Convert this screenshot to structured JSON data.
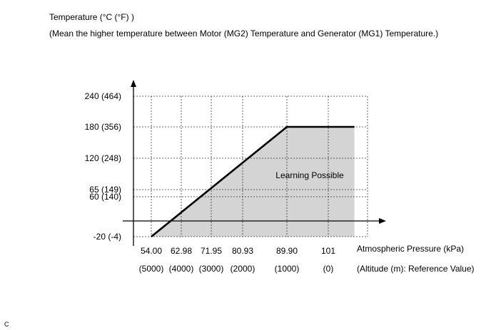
{
  "chart_data": {
    "type": "area",
    "ylabel": "Temperature (°C (°F) )",
    "ylabel_note": "(Mean the higher temperature between Motor (MG2) Temperature and Generator (MG1) Temperature.)",
    "xlabel": "Atmospheric Pressure (kPa)",
    "xlabel_secondary": "(Altitude (m): Reference Value)",
    "x_ticks": [
      {
        "value": 54.0,
        "label": "54.00",
        "altitude_label": "(5000)"
      },
      {
        "value": 62.98,
        "label": "62.98",
        "altitude_label": "(4000)"
      },
      {
        "value": 71.95,
        "label": "71.95",
        "altitude_label": "(3000)"
      },
      {
        "value": 80.93,
        "label": "80.93",
        "altitude_label": "(2000)"
      },
      {
        "value": 89.9,
        "label": "89.90",
        "altitude_label": "(1000)"
      },
      {
        "value": 101,
        "label": "101",
        "altitude_label": "(0)"
      }
    ],
    "y_ticks": [
      {
        "value": -20,
        "label": "-20 (-4)"
      },
      {
        "value": 60,
        "label": "60 (140)"
      },
      {
        "value": 65,
        "label": "65 (149)"
      },
      {
        "value": 120,
        "label": "120 (248)"
      },
      {
        "value": 180,
        "label": "180 (356)"
      },
      {
        "value": 240,
        "label": "240 (464)"
      }
    ],
    "series": [
      {
        "x": [
          54.0,
          89.9,
          108
        ],
        "y": [
          -20,
          180,
          180
        ]
      }
    ],
    "region_label": "Learning Possible",
    "grid": true,
    "fill_color": "#d4d4d4",
    "line_color": "#000000"
  },
  "corner_label": "C"
}
